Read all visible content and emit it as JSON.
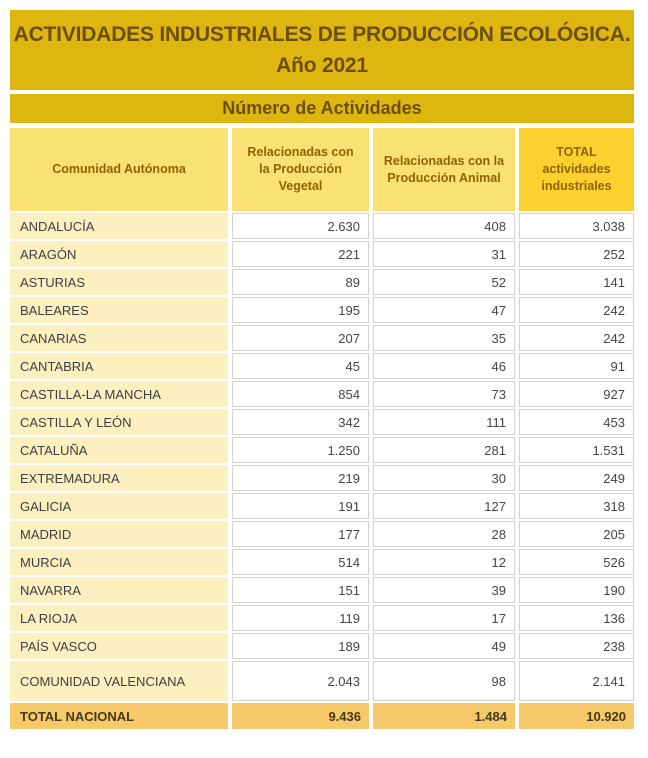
{
  "header": {
    "title_line1": "ACTIVIDADES INDUSTRIALES DE PRODUCCIÓN ECOLÓGICA.",
    "title_line2": "Año 2021",
    "subtitle": "Número de Actividades"
  },
  "colors": {
    "band_gold": "#DDB60F",
    "band_text_brown": "#6E4E10",
    "header_cell_yellow": "#FAE173",
    "header_total_yellow": "#FCD12F",
    "header_text_brown": "#8F6400",
    "row_label_cream": "#FCEFC0",
    "data_cell_border": "#D2D2D2",
    "data_text_gray": "#454545",
    "total_row_gold": "#F6C96B",
    "total_row_text": "#463A15"
  },
  "table": {
    "columns": [
      "Comunidad Autónoma",
      "Relacionadas con la Producción Vegetal",
      "Relacionadas con la Producción Animal",
      "TOTAL actividades industriales"
    ],
    "rows": [
      {
        "name": "ANDALUCÍA",
        "vegetal": "2.630",
        "animal": "408",
        "total": "3.038"
      },
      {
        "name": "ARAGÓN",
        "vegetal": "221",
        "animal": "31",
        "total": "252"
      },
      {
        "name": "ASTURIAS",
        "vegetal": "89",
        "animal": "52",
        "total": "141"
      },
      {
        "name": "BALEARES",
        "vegetal": "195",
        "animal": "47",
        "total": "242"
      },
      {
        "name": "CANARIAS",
        "vegetal": "207",
        "animal": "35",
        "total": "242"
      },
      {
        "name": "CANTABRIA",
        "vegetal": "45",
        "animal": "46",
        "total": "91"
      },
      {
        "name": "CASTILLA-LA MANCHA",
        "vegetal": "854",
        "animal": "73",
        "total": "927"
      },
      {
        "name": "CASTILLA Y LEÓN",
        "vegetal": "342",
        "animal": "111",
        "total": "453"
      },
      {
        "name": "CATALUÑA",
        "vegetal": "1.250",
        "animal": "281",
        "total": "1.531"
      },
      {
        "name": "EXTREMADURA",
        "vegetal": "219",
        "animal": "30",
        "total": "249"
      },
      {
        "name": "GALICIA",
        "vegetal": "191",
        "animal": "127",
        "total": "318"
      },
      {
        "name": "MADRID",
        "vegetal": "177",
        "animal": "28",
        "total": "205"
      },
      {
        "name": "MURCIA",
        "vegetal": "514",
        "animal": "12",
        "total": "526"
      },
      {
        "name": "NAVARRA",
        "vegetal": "151",
        "animal": "39",
        "total": "190"
      },
      {
        "name": "LA RIOJA",
        "vegetal": "119",
        "animal": "17",
        "total": "136"
      },
      {
        "name": "PAÍS VASCO",
        "vegetal": "189",
        "animal": "49",
        "total": "238"
      },
      {
        "name": "COMUNIDAD VALENCIANA",
        "vegetal": "2.043",
        "animal": "98",
        "total": "2.141"
      }
    ],
    "total_row": {
      "name": "TOTAL NACIONAL",
      "vegetal": "9.436",
      "animal": "1.484",
      "total": "10.920"
    }
  },
  "chart_data": {
    "type": "table",
    "title": "ACTIVIDADES INDUSTRIALES DE PRODUCCIÓN ECOLÓGICA. Año 2021",
    "subtitle": "Número de Actividades",
    "categories": [
      "ANDALUCÍA",
      "ARAGÓN",
      "ASTURIAS",
      "BALEARES",
      "CANARIAS",
      "CANTABRIA",
      "CASTILLA-LA MANCHA",
      "CASTILLA Y LEÓN",
      "CATALUÑA",
      "EXTREMADURA",
      "GALICIA",
      "MADRID",
      "MURCIA",
      "NAVARRA",
      "LA RIOJA",
      "PAÍS VASCO",
      "COMUNIDAD VALENCIANA"
    ],
    "series": [
      {
        "name": "Relacionadas con la Producción Vegetal",
        "values": [
          2630,
          221,
          89,
          195,
          207,
          45,
          854,
          342,
          1250,
          219,
          191,
          177,
          514,
          151,
          119,
          189,
          2043
        ]
      },
      {
        "name": "Relacionadas con la Producción Animal",
        "values": [
          408,
          31,
          52,
          47,
          35,
          46,
          73,
          111,
          281,
          30,
          127,
          28,
          12,
          39,
          17,
          49,
          98
        ]
      },
      {
        "name": "TOTAL actividades industriales",
        "values": [
          3038,
          252,
          141,
          242,
          242,
          91,
          927,
          453,
          1531,
          249,
          318,
          205,
          526,
          190,
          136,
          238,
          2141
        ]
      }
    ],
    "totals": {
      "label": "TOTAL NACIONAL",
      "vegetal": 9436,
      "animal": 1484,
      "total": 10920
    }
  }
}
